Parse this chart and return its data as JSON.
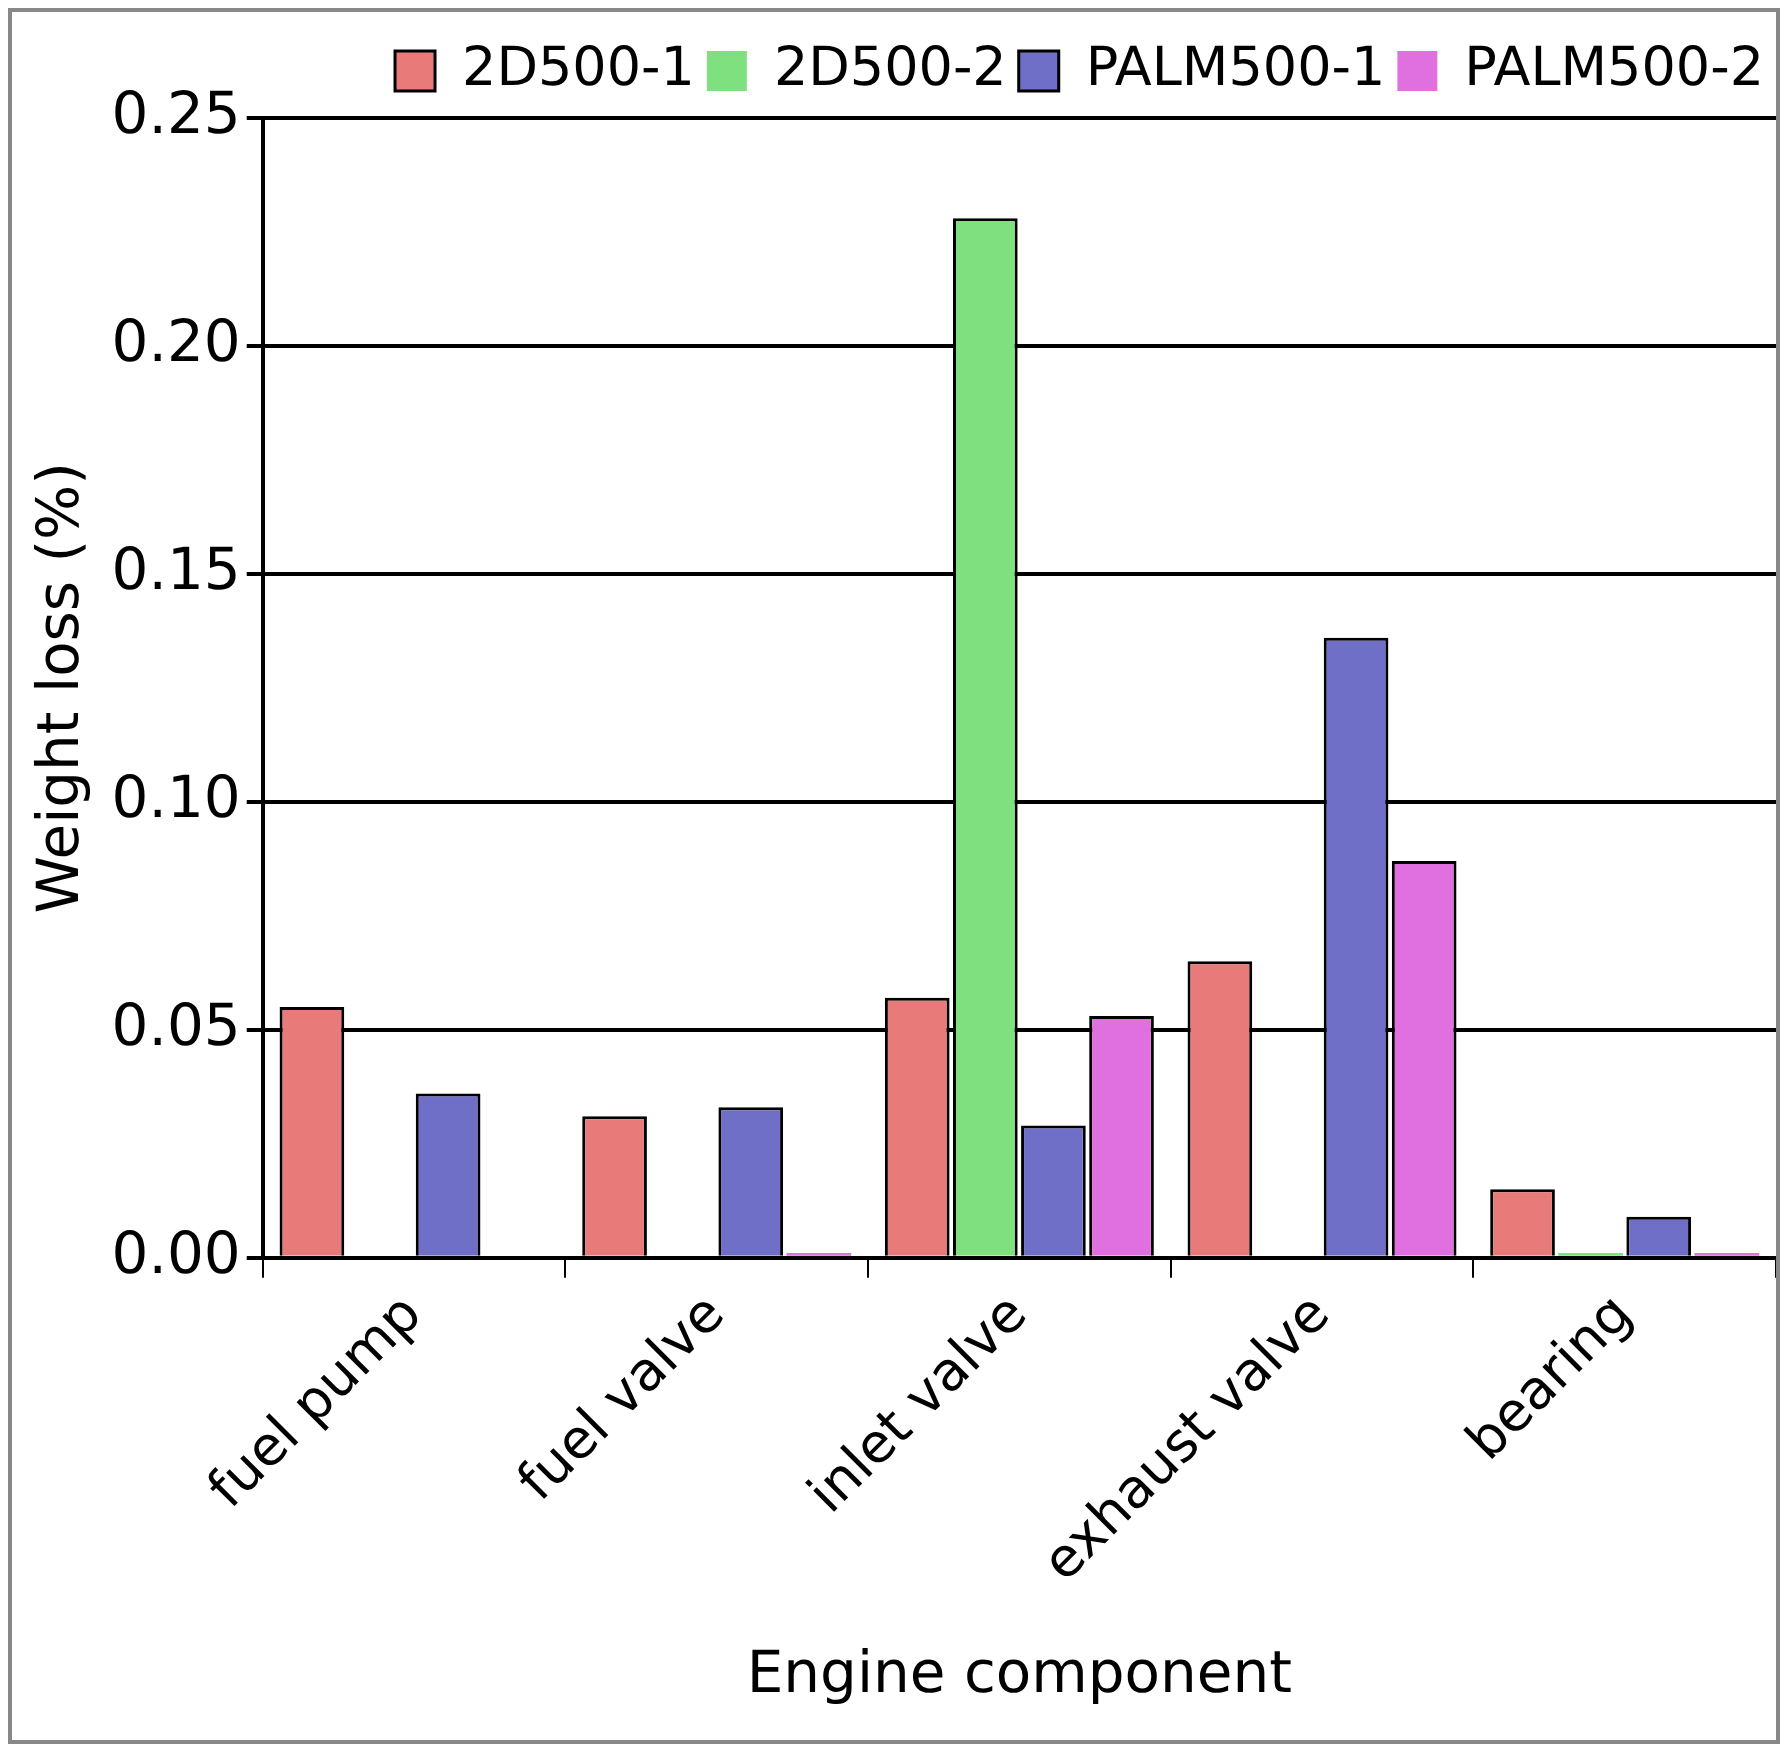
{
  "chart_data": {
    "type": "bar",
    "xlabel": "Engine component",
    "ylabel": "Weight loss (%)",
    "categories": [
      "fuel pump",
      "fuel valve",
      "inlet valve",
      "exhaust valve",
      "bearing"
    ],
    "series": [
      {
        "name": "2D500-1",
        "color": "#e87a7a",
        "values": [
          0.055,
          0.031,
          0.057,
          0.065,
          0.015
        ]
      },
      {
        "name": "2D500-2",
        "color": "#7ee07e",
        "values": [
          0,
          0,
          0.228,
          0,
          0.001
        ]
      },
      {
        "name": "PALM500-1",
        "color": "#6f6fc8",
        "values": [
          0.036,
          0.033,
          0.029,
          0.136,
          0.009
        ]
      },
      {
        "name": "PALM500-2",
        "color": "#e070e0",
        "values": [
          0,
          0.001,
          0.053,
          0.087,
          0.001
        ]
      }
    ],
    "ylim": [
      0,
      0.25
    ],
    "yticks": [
      {
        "value": 0,
        "label": "0.00"
      },
      {
        "value": 0.05,
        "label": "0.05"
      },
      {
        "value": 0.1,
        "label": "0.10"
      },
      {
        "value": 0.15,
        "label": "0.15"
      },
      {
        "value": 0.2,
        "label": "0.20"
      },
      {
        "value": 0.25,
        "label": "0.25"
      }
    ],
    "grid": "y",
    "legend": "top right"
  }
}
